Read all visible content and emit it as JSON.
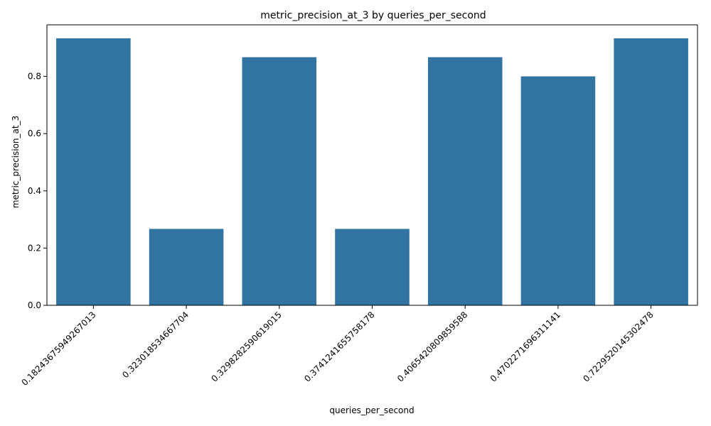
{
  "chart_data": {
    "type": "bar",
    "title": "metric_precision_at_3 by queries_per_second",
    "xlabel": "queries_per_second",
    "ylabel": "metric_precision_at_3",
    "categories": [
      "0.1824367594926701З",
      "0.323018534667704",
      "0.3298282590619015",
      "0.3741241655758178",
      "0.4065420809859588",
      "0.4702271696311141",
      "0.7229520145302478"
    ],
    "values": [
      0.933,
      0.267,
      0.867,
      0.267,
      0.867,
      0.8,
      0.933
    ],
    "yticks": [
      0.0,
      0.2,
      0.4,
      0.6,
      0.8
    ],
    "ytick_labels": [
      "0.0",
      "0.2",
      "0.4",
      "0.6",
      "0.8"
    ],
    "ylim": [
      0,
      0.98
    ],
    "bar_color": "#3274a1",
    "grid": false,
    "legend": "none"
  }
}
